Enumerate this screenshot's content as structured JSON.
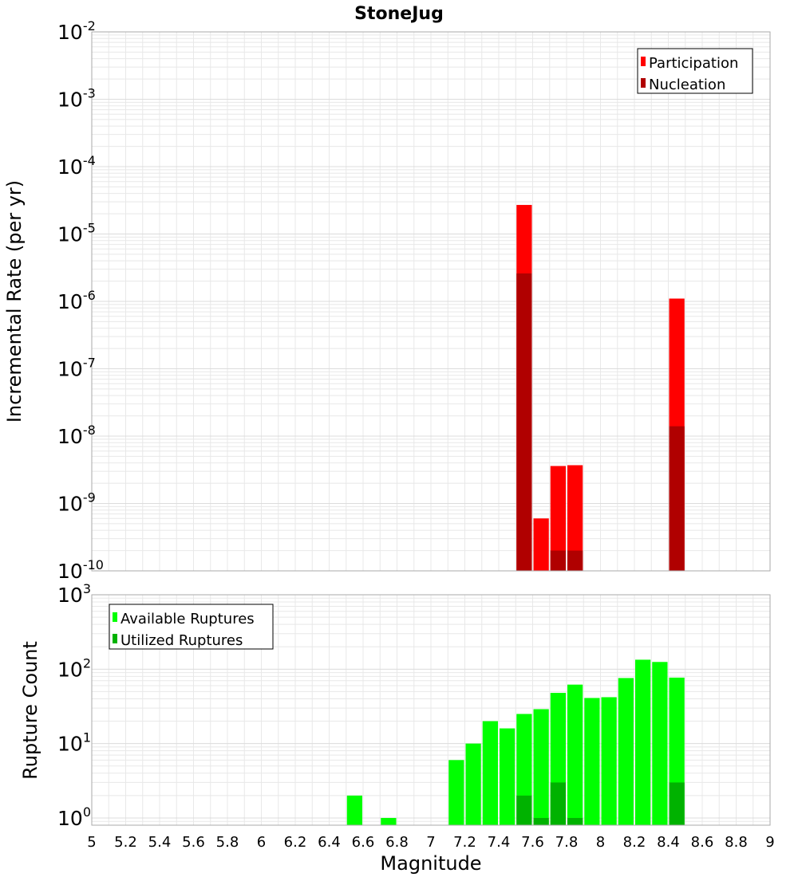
{
  "title": "StoneJug",
  "colors": {
    "participation": "#ff0000",
    "nucleation": "#b00000",
    "available": "#00ff00",
    "utilized": "#00b200",
    "grid": "#e8e8e8",
    "frame": "#aaaaaa"
  },
  "chart_data": [
    {
      "type": "bar",
      "ylabel": "Incremental Rate (per yr)",
      "xlabel": "Magnitude",
      "yscale": "log",
      "ylim": [
        1e-10,
        0.01
      ],
      "xlim": [
        5,
        9
      ],
      "grid": true,
      "legend_position": "top-right",
      "y_ticks": [
        {
          "base": "10",
          "exp": "-10"
        },
        {
          "base": "10",
          "exp": "-9"
        },
        {
          "base": "10",
          "exp": "-8"
        },
        {
          "base": "10",
          "exp": "-7"
        },
        {
          "base": "10",
          "exp": "-6"
        },
        {
          "base": "10",
          "exp": "-5"
        },
        {
          "base": "10",
          "exp": "-4"
        },
        {
          "base": "10",
          "exp": "-3"
        },
        {
          "base": "10",
          "exp": "-2"
        }
      ],
      "series": [
        {
          "name": "Participation",
          "x": [
            7.55,
            7.65,
            7.75,
            7.85,
            8.45
          ],
          "values": [
            2.7e-05,
            6e-10,
            3.6e-09,
            3.7e-09,
            1.1e-06
          ]
        },
        {
          "name": "Nucleation",
          "x": [
            7.55,
            7.75,
            7.85,
            8.45
          ],
          "values": [
            2.6e-06,
            2e-10,
            2e-10,
            1.4e-08
          ]
        }
      ]
    },
    {
      "type": "bar",
      "ylabel": "Rupture Count",
      "xlabel": "Magnitude",
      "yscale": "log",
      "ylim": [
        0.8,
        1000
      ],
      "xlim": [
        5,
        9
      ],
      "grid": true,
      "legend_position": "top-left",
      "y_ticks": [
        {
          "base": "10",
          "exp": "0"
        },
        {
          "base": "10",
          "exp": "1"
        },
        {
          "base": "10",
          "exp": "2"
        },
        {
          "base": "10",
          "exp": "3"
        }
      ],
      "series": [
        {
          "name": "Available Ruptures",
          "x": [
            6.55,
            6.75,
            7.15,
            7.25,
            7.35,
            7.45,
            7.55,
            7.65,
            7.75,
            7.85,
            7.95,
            8.05,
            8.15,
            8.25,
            8.35,
            8.45
          ],
          "values": [
            2,
            1,
            6,
            10,
            20,
            16,
            25,
            29,
            48,
            62,
            41,
            42,
            76,
            134,
            125,
            77
          ]
        },
        {
          "name": "Utilized Ruptures",
          "x": [
            7.55,
            7.65,
            7.75,
            7.85,
            8.45
          ],
          "values": [
            2,
            1,
            3,
            1,
            3
          ]
        }
      ]
    }
  ],
  "x_ticks": [
    "5",
    "5.2",
    "5.4",
    "5.6",
    "5.8",
    "6",
    "6.2",
    "6.4",
    "6.6",
    "6.8",
    "7",
    "7.2",
    "7.4",
    "7.6",
    "7.8",
    "8",
    "8.2",
    "8.4",
    "8.6",
    "8.8",
    "9"
  ]
}
